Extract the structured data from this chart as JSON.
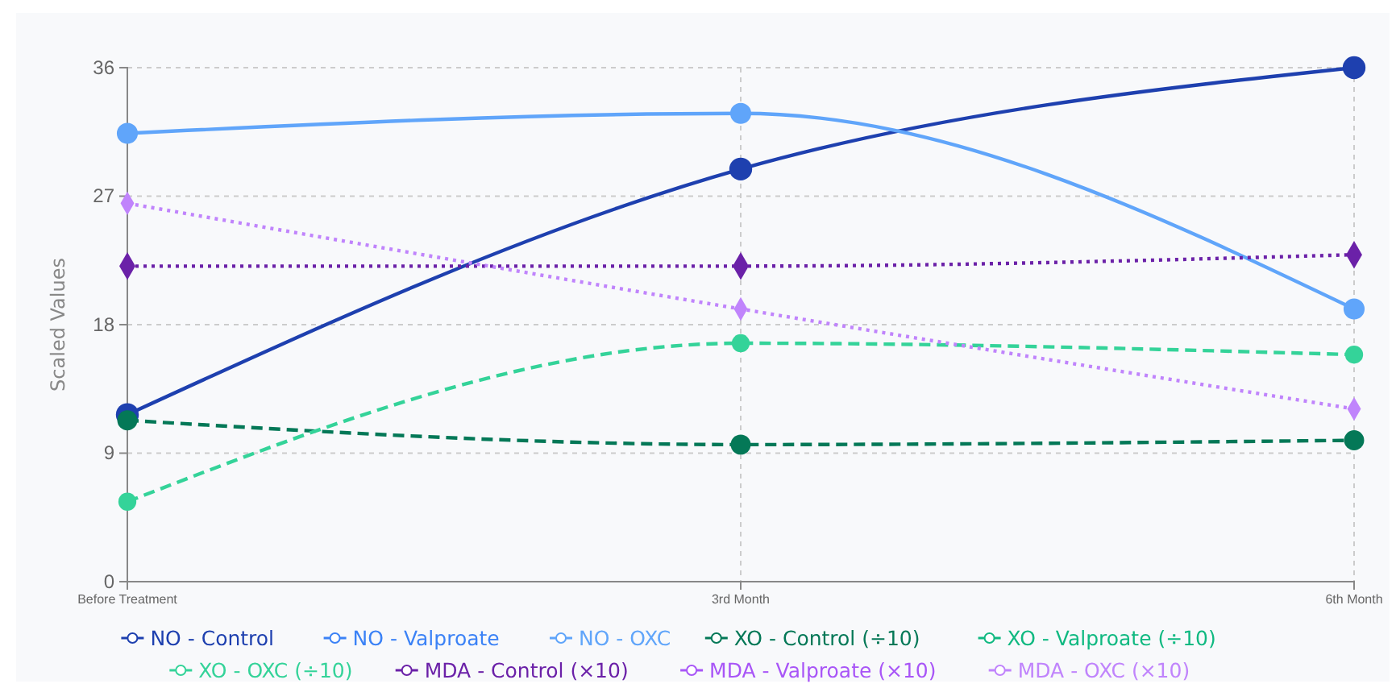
{
  "chart_data": {
    "type": "line",
    "ylabel": "Scaled Values",
    "categories": [
      "Before Treatment",
      "3rd Month",
      "6th Month"
    ],
    "ylim": [
      0,
      36
    ],
    "yticks": [
      0,
      9,
      18,
      27,
      36
    ],
    "grid": true,
    "legend": "bottom",
    "series": [
      {
        "name": "NO - Control",
        "color": "#1e40af",
        "line_style": "solid",
        "marker": "circle",
        "values": [
          11.7,
          28.9,
          36
        ]
      },
      {
        "name": "NO - Valproate",
        "color": "#3b82f6",
        "line_style": "solid",
        "marker": "circle",
        "values": [
          null,
          null,
          null
        ]
      },
      {
        "name": "NO - OXC",
        "color": "#60a5fa",
        "line_style": "solid",
        "marker": "circle",
        "values": [
          31.4,
          32.8,
          19.1
        ]
      },
      {
        "name": "XO - Control (÷10)",
        "color": "#047857",
        "line_style": "dashed",
        "marker": "circle",
        "values": [
          11.3,
          9.6,
          9.9
        ]
      },
      {
        "name": "XO - Valproate (÷10)",
        "color": "#10b981",
        "line_style": "dashed",
        "marker": "circle",
        "values": [
          null,
          null,
          null
        ]
      },
      {
        "name": "XO - OXC (÷10)",
        "color": "#34d399",
        "line_style": "dashed",
        "marker": "circle",
        "values": [
          5.6,
          16.7,
          15.9
        ]
      },
      {
        "name": "MDA - Control (×10)",
        "color": "#6b21a8",
        "line_style": "dotted",
        "marker": "diamond",
        "values": [
          22.1,
          22.1,
          22.9
        ]
      },
      {
        "name": "MDA - Valproate (×10)",
        "color": "#a855f7",
        "line_style": "dotted",
        "marker": "diamond",
        "values": [
          null,
          null,
          null
        ]
      },
      {
        "name": "MDA - OXC (×10)",
        "color": "#c084fc",
        "line_style": "dotted",
        "marker": "diamond",
        "values": [
          26.5,
          19.1,
          12.1
        ]
      }
    ]
  }
}
